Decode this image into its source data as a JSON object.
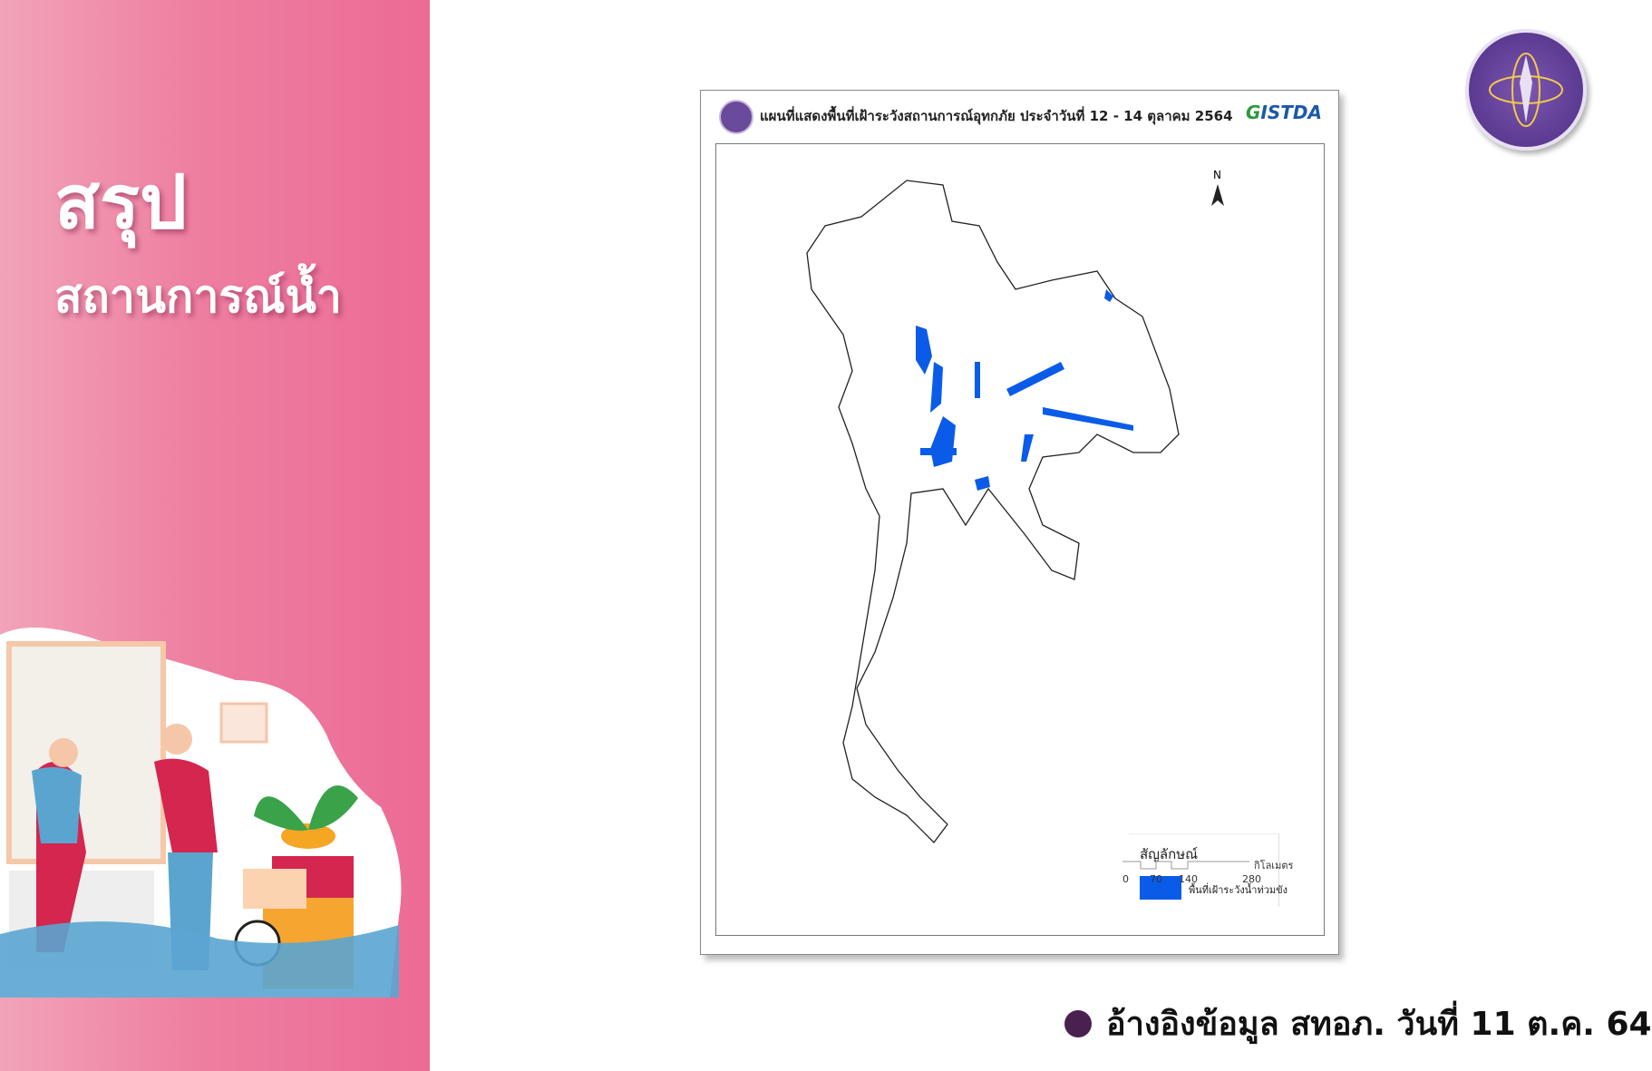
{
  "sidebar": {
    "title_line1": "สรุป",
    "title_line2": "สถานการณ์น้ำ"
  },
  "map": {
    "title": "แผนที่แสดงพื้นที่เฝ้าระวังสถานการณ์อุทกภัย ประจำวันที่ 12 - 14 ตุลาคม 2564",
    "brand_logo": "GISTDA",
    "north_label": "N",
    "legend": {
      "title": "สัญลักษณ์",
      "item_label": "พื้นที่เฝ้าระวังน้ำท่วมขัง",
      "item_color": "#0a5ce8"
    },
    "scale": {
      "ticks": [
        "0",
        "70",
        "140",
        "280"
      ],
      "unit": "กิโลเมตร"
    }
  },
  "footer": {
    "source_text": "อ้างอิงข้อมูล สทอภ. วันที่ 11 ต.ค. 64",
    "bullet_color": "#4a2050"
  },
  "colors": {
    "panel_pink": "#ec6b95",
    "flood_blue": "#0a5ce8"
  },
  "icons": {
    "seal": "ministry-seal-icon",
    "north": "north-arrow-icon"
  }
}
